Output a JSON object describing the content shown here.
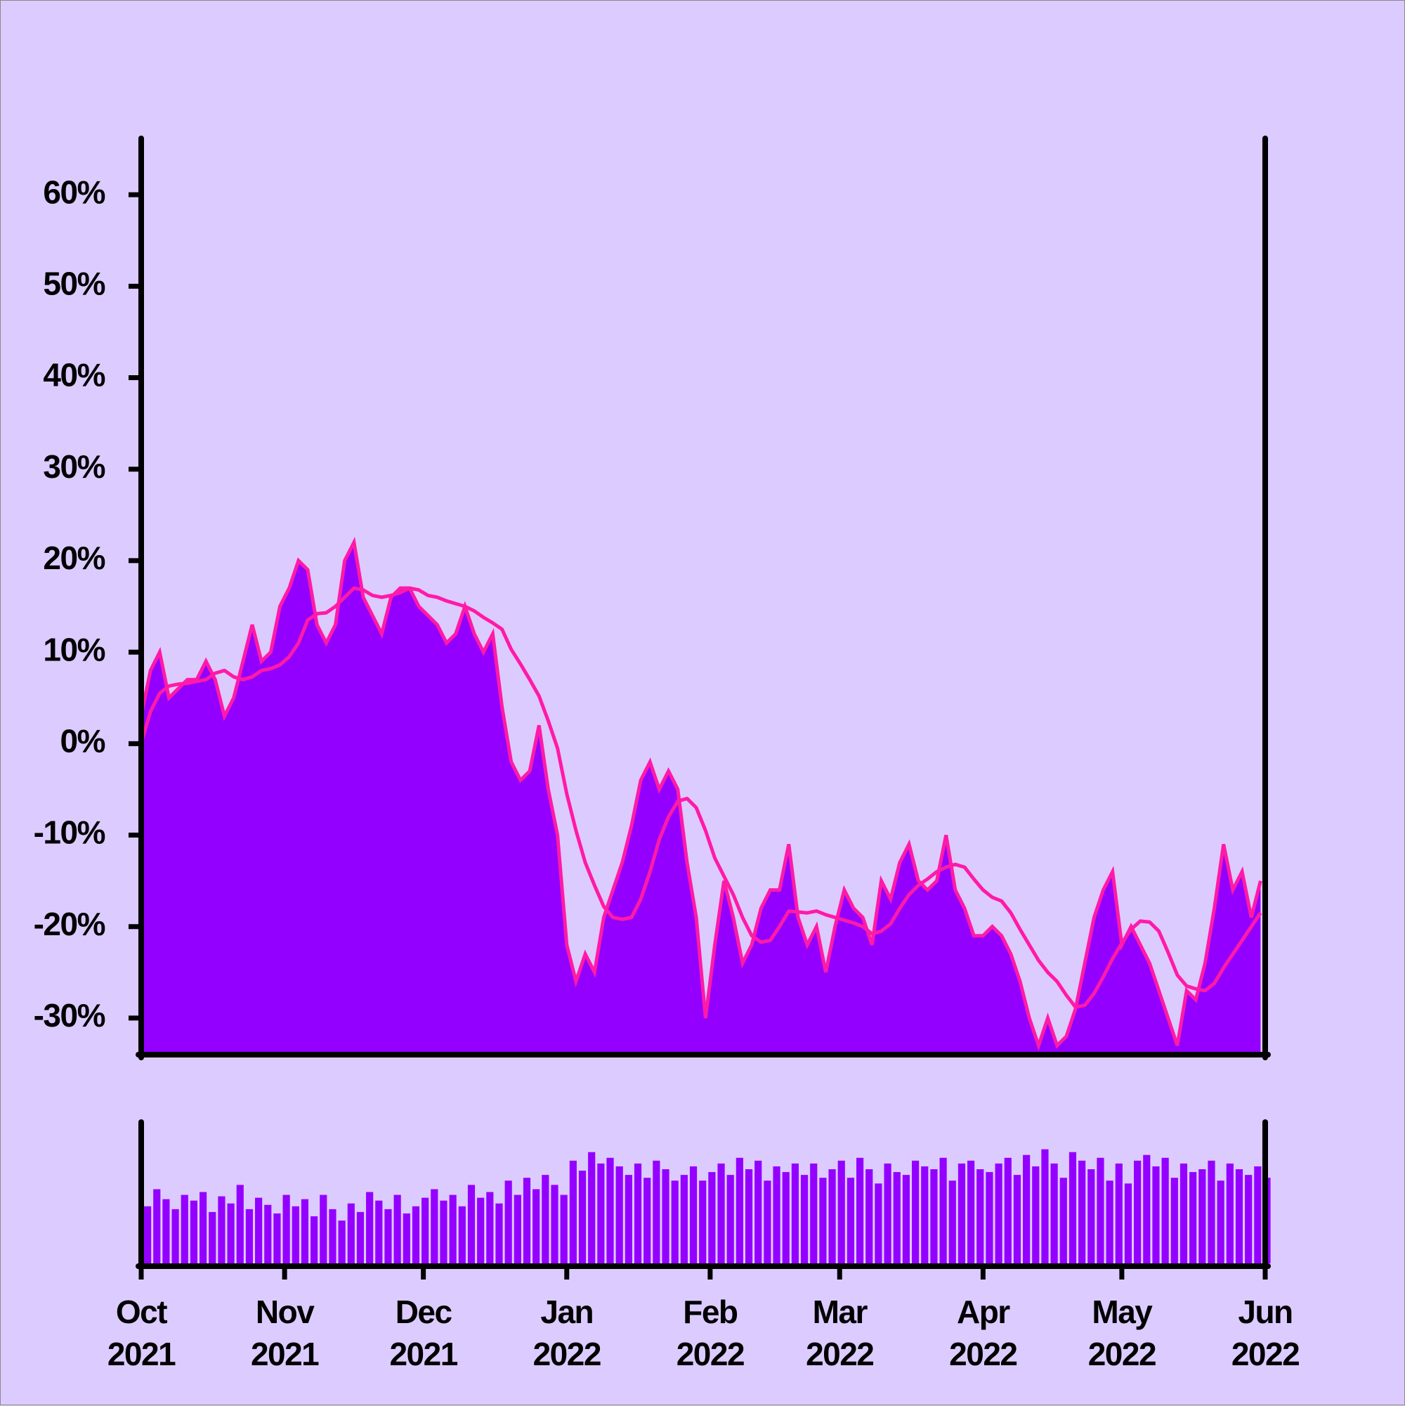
{
  "chart_data": [
    {
      "type": "area",
      "x": [
        0,
        2,
        4,
        6,
        8,
        10,
        12,
        14,
        16,
        18,
        20,
        22,
        24,
        26,
        28,
        30,
        32,
        34,
        36,
        38,
        40,
        42,
        44,
        46,
        48,
        50,
        52,
        54,
        56,
        58,
        60,
        62,
        64,
        66,
        68,
        70,
        72,
        74,
        76,
        78,
        80,
        82,
        84,
        86,
        88,
        90,
        92,
        94,
        96,
        98,
        100,
        102,
        104,
        106,
        108,
        110,
        112,
        114,
        116,
        118,
        120,
        122,
        124,
        126,
        128,
        130,
        132,
        134,
        136,
        138,
        140,
        142,
        144,
        146,
        148,
        150,
        152,
        154,
        156,
        158,
        160,
        162,
        164,
        166,
        168,
        170,
        172,
        174,
        176,
        178,
        180,
        182,
        184,
        186,
        188,
        190,
        192,
        194,
        196,
        198,
        200,
        202,
        204,
        206,
        208,
        210,
        212,
        214,
        216,
        218,
        220,
        222,
        224,
        226,
        228,
        230,
        232,
        234,
        236,
        238,
        240,
        242
      ],
      "series": [
        {
          "type": "area",
          "color": "#ff1aa8",
          "fill": "#9400ff",
          "values": [
            3,
            8,
            10,
            5,
            6,
            7,
            7,
            9,
            7,
            3,
            5,
            9,
            13,
            9,
            10,
            15,
            17,
            20,
            19,
            13,
            11,
            13,
            20,
            22,
            16,
            14,
            12,
            16,
            17,
            17,
            15,
            14,
            13,
            11,
            12,
            15,
            12,
            10,
            12,
            4,
            -2,
            -4,
            -3,
            2,
            -5,
            -10,
            -22,
            -26,
            -23,
            -25,
            -19,
            -16,
            -13,
            -9,
            -4,
            -2,
            -5,
            -3,
            -5,
            -13,
            -19,
            -30,
            -22,
            -15,
            -19,
            -24,
            -22,
            -18,
            -16,
            -16,
            -11,
            -19,
            -22,
            -20,
            -25,
            -20,
            -16,
            -18,
            -19,
            -22,
            -15,
            -17,
            -13,
            -11,
            -15,
            -16,
            -15,
            -10,
            -16,
            -18,
            -21,
            -21,
            -20,
            -21,
            -23,
            -26,
            -30,
            -33,
            -30,
            -33,
            -32,
            -29,
            -24,
            -19,
            -16,
            -14,
            -22,
            -20,
            -22,
            -24,
            -27,
            -30,
            -33,
            -27,
            -28,
            -24,
            -18,
            -11,
            -16,
            -14,
            -19,
            -15
          ]
        },
        {
          "type": "line",
          "color": "#ff1aa8",
          "values": [
            0,
            3.5,
            5.5,
            6.3,
            6.5,
            6.6,
            6.8,
            7,
            7.7,
            8,
            7.3,
            7,
            7.3,
            8,
            8.2,
            8.6,
            9.5,
            11,
            13.5,
            14.2,
            14.3,
            15,
            16,
            17,
            16.8,
            16.2,
            16,
            16.2,
            16.5,
            17,
            16.8,
            16.2,
            16,
            15.6,
            15.3,
            15,
            14.5,
            13.8,
            13.2,
            12.5,
            10.3,
            8.7,
            7,
            5.2,
            2.5,
            -0.5,
            -5.5,
            -9.5,
            -13,
            -15.5,
            -17.8,
            -19,
            -19.2,
            -19,
            -17,
            -14,
            -10.5,
            -8,
            -6.3,
            -6,
            -7,
            -9.5,
            -12.5,
            -14.5,
            -16.5,
            -19,
            -21,
            -21.7,
            -21.5,
            -20,
            -18.3,
            -18.4,
            -18.5,
            -18.3,
            -18.7,
            -19,
            -19.3,
            -19.6,
            -20,
            -20.8,
            -20.5,
            -19.7,
            -18,
            -16.5,
            -15.5,
            -14.8,
            -14,
            -13.5,
            -13.2,
            -13.5,
            -14.8,
            -16,
            -16.8,
            -17.2,
            -18.5,
            -20.3,
            -22,
            -23.7,
            -25,
            -26,
            -27.5,
            -28.8,
            -28.6,
            -27.3,
            -25.5,
            -23.5,
            -21.8,
            -20.3,
            -19.4,
            -19.5,
            -20.5,
            -22.8,
            -25.3,
            -26.5,
            -26.8,
            -27,
            -26.2,
            -24.5,
            -23,
            -21.5,
            -20,
            -18.5
          ]
        }
      ],
      "xlim": [
        0,
        243
      ],
      "ylim": [
        -34,
        66
      ],
      "yticks": [
        {
          "value": -30,
          "label": "-30%"
        },
        {
          "value": -20,
          "label": "-20%"
        },
        {
          "value": -10,
          "label": "-10%"
        },
        {
          "value": 0,
          "label": "0%"
        },
        {
          "value": 10,
          "label": "10%"
        },
        {
          "value": 20,
          "label": "20%"
        },
        {
          "value": 30,
          "label": "30%"
        },
        {
          "value": 40,
          "label": "40%"
        },
        {
          "value": 50,
          "label": "50%"
        },
        {
          "value": 60,
          "label": "60%"
        }
      ]
    },
    {
      "type": "bar",
      "x": [
        0,
        2,
        4,
        6,
        8,
        10,
        12,
        14,
        16,
        18,
        20,
        22,
        24,
        26,
        28,
        30,
        32,
        34,
        36,
        38,
        40,
        42,
        44,
        46,
        48,
        50,
        52,
        54,
        56,
        58,
        60,
        62,
        64,
        66,
        68,
        70,
        72,
        74,
        76,
        78,
        80,
        82,
        84,
        86,
        88,
        90,
        92,
        94,
        96,
        98,
        100,
        102,
        104,
        106,
        108,
        110,
        112,
        114,
        116,
        118,
        120,
        122,
        124,
        126,
        128,
        130,
        132,
        134,
        136,
        138,
        140,
        142,
        144,
        146,
        148,
        150,
        152,
        154,
        156,
        158,
        160,
        162,
        164,
        166,
        168,
        170,
        172,
        174,
        176,
        178,
        180,
        182,
        184,
        186,
        188,
        190,
        192,
        194,
        196,
        198,
        200,
        202,
        204,
        206,
        208,
        210,
        212,
        214,
        216,
        218,
        220,
        222,
        224,
        226,
        228,
        230,
        232,
        234,
        236,
        238,
        240,
        242
      ],
      "values": [
        40,
        52,
        45,
        38,
        48,
        44,
        50,
        36,
        47,
        42,
        55,
        38,
        46,
        41,
        35,
        48,
        40,
        45,
        33,
        48,
        38,
        30,
        42,
        36,
        50,
        44,
        38,
        48,
        35,
        40,
        46,
        52,
        44,
        48,
        40,
        55,
        46,
        50,
        42,
        58,
        48,
        60,
        52,
        62,
        55,
        48,
        72,
        65,
        78,
        70,
        74,
        68,
        62,
        70,
        60,
        72,
        66,
        58,
        62,
        68,
        58,
        64,
        70,
        62,
        74,
        66,
        72,
        58,
        68,
        64,
        70,
        62,
        70,
        60,
        66,
        72,
        60,
        74,
        66,
        56,
        70,
        64,
        62,
        72,
        68,
        66,
        74,
        58,
        70,
        72,
        66,
        64,
        70,
        74,
        62,
        76,
        68,
        80,
        70,
        60,
        78,
        72,
        66,
        74,
        58,
        70,
        56,
        72,
        76,
        68,
        74,
        60,
        70,
        64,
        66,
        72,
        58,
        70,
        66,
        62,
        68,
        60
      ],
      "color": "#9400ff",
      "xlim": [
        0,
        243
      ],
      "ylim": [
        0,
        100
      ],
      "xticks": [
        {
          "value": 0,
          "label": "Oct 2021"
        },
        {
          "value": 31,
          "label": "Nov 2021"
        },
        {
          "value": 61,
          "label": "Dec 2021"
        },
        {
          "value": 92,
          "label": "Jan 2022"
        },
        {
          "value": 123,
          "label": "Feb 2022"
        },
        {
          "value": 151,
          "label": "Mar 2022"
        },
        {
          "value": 182,
          "label": "Apr 2022"
        },
        {
          "value": 212,
          "label": "May 2022"
        },
        {
          "value": 243,
          "label": "Jun 2022"
        }
      ]
    }
  ]
}
